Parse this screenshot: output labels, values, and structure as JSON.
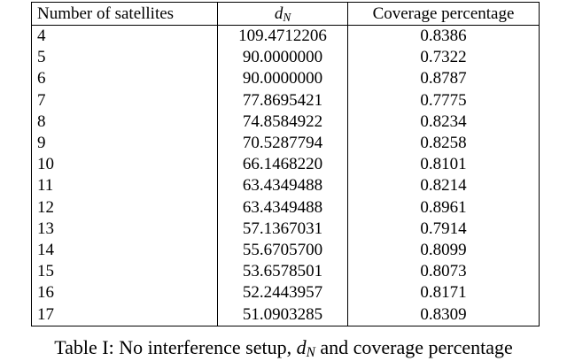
{
  "table": {
    "header": [
      "Number of satellites",
      {
        "base": "d",
        "sub": "N"
      },
      "Coverage percentage"
    ],
    "rows": [
      [
        "4",
        "109.4712206",
        "0.8386"
      ],
      [
        "5",
        "90.0000000",
        "0.7322"
      ],
      [
        "6",
        "90.0000000",
        "0.8787"
      ],
      [
        "7",
        "77.8695421",
        "0.7775"
      ],
      [
        "8",
        "74.8584922",
        "0.8234"
      ],
      [
        "9",
        "70.5287794",
        "0.8258"
      ],
      [
        "10",
        "66.1468220",
        "0.8101"
      ],
      [
        "11",
        "63.4349488",
        "0.8214"
      ],
      [
        "12",
        "63.4349488",
        "0.8961"
      ],
      [
        "13",
        "57.1367031",
        "0.7914"
      ],
      [
        "14",
        "55.6705700",
        "0.8099"
      ],
      [
        "15",
        "53.6578501",
        "0.8073"
      ],
      [
        "16",
        "52.2443957",
        "0.8171"
      ],
      [
        "17",
        "51.0903285",
        "0.8309"
      ]
    ]
  },
  "caption": {
    "prefix": "Table I: No interference setup, ",
    "symbol": {
      "base": "d",
      "sub": "N"
    },
    "suffix": " and coverage percentage"
  }
}
